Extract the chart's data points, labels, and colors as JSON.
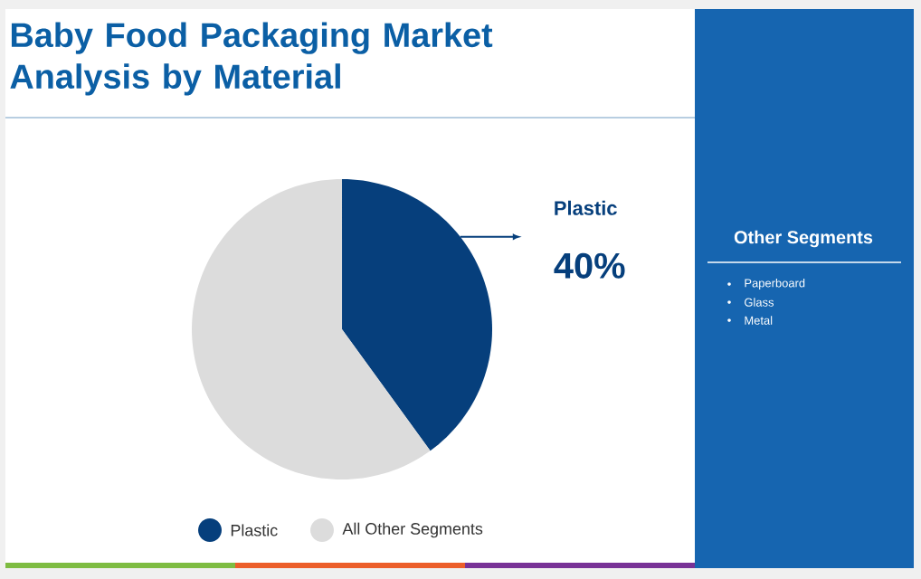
{
  "chart_data": {
    "type": "pie",
    "title": "Baby Food Packaging Market Analysis by Material",
    "categories": [
      "Plastic",
      "All Other Segments"
    ],
    "values": [
      40,
      60
    ],
    "colors": [
      "#063f7c",
      "#dcdcdc"
    ],
    "value_labels": [
      "40%",
      null
    ],
    "legend": "bottom",
    "annotations": [
      "Other Segments",
      "Paperboard",
      "Glass",
      "Metal"
    ]
  }
}
